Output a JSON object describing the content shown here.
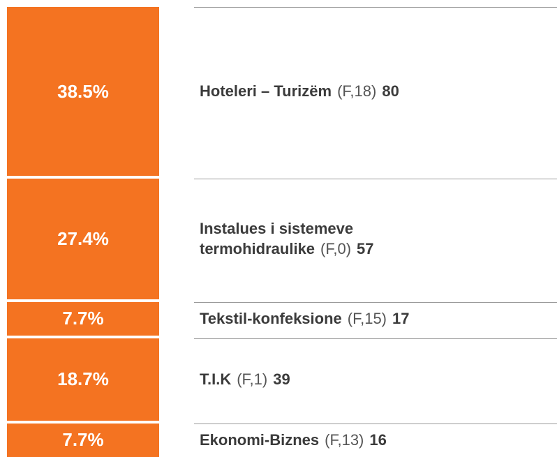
{
  "chart_data": {
    "type": "stacked-column",
    "categories": [
      "Hoteleri – Turizëm",
      "Instalues i sistemeve termohidraulike",
      "Tekstil-konfeksione",
      "T.I.K",
      "Ekonomi-Biznes"
    ],
    "values": [
      38.5,
      27.4,
      7.7,
      18.7,
      7.7
    ],
    "value_labels": [
      "38.5%",
      "27.4%",
      "7.7%",
      "18.7%",
      "7.7%"
    ],
    "codes": [
      "(F,18)",
      "(F,0)",
      "(F,15)",
      "(F,1)",
      "(F,13)"
    ],
    "counts": [
      80,
      57,
      17,
      39,
      16
    ],
    "ylim": [
      0,
      100
    ],
    "color": "#f47321"
  }
}
